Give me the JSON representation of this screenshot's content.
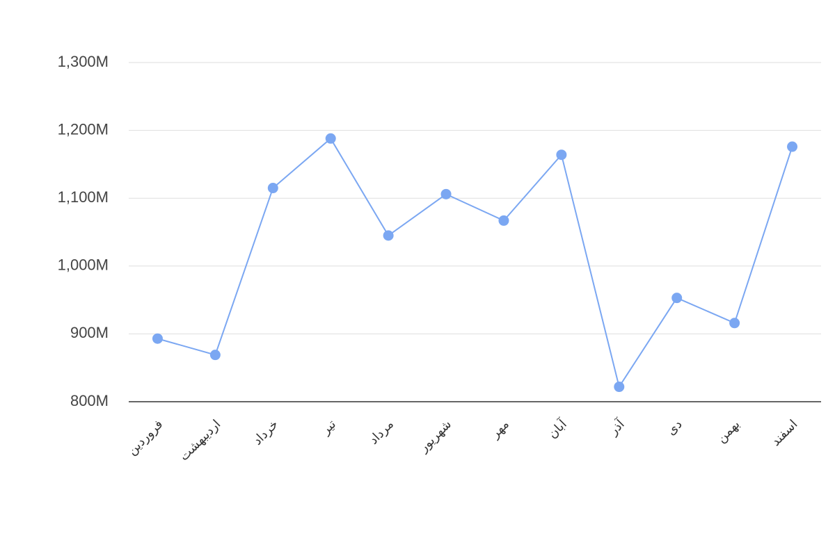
{
  "chart_data": {
    "type": "line",
    "categories": [
      "فروردین",
      "اردیبهشت",
      "خرداد",
      "تیر",
      "مرداد",
      "شهریور",
      "مهر",
      "آبان",
      "آذر",
      "دی",
      "بهمن",
      "اسفند"
    ],
    "series": [
      {
        "name": "",
        "color": "#7ba7f2",
        "values": [
          893,
          869,
          1115,
          1188,
          1045,
          1106,
          1067,
          1164,
          822,
          953,
          916,
          1176
        ]
      }
    ],
    "ylim": [
      800,
      1300
    ],
    "yticks": [
      {
        "value": 800,
        "label": "800M"
      },
      {
        "value": 900,
        "label": "900M"
      },
      {
        "value": 1000,
        "label": "1,000M"
      },
      {
        "value": 1100,
        "label": "1,100M"
      },
      {
        "value": 1200,
        "label": "1,200M"
      },
      {
        "value": 1300,
        "label": "1,300M"
      }
    ],
    "grid": true
  }
}
